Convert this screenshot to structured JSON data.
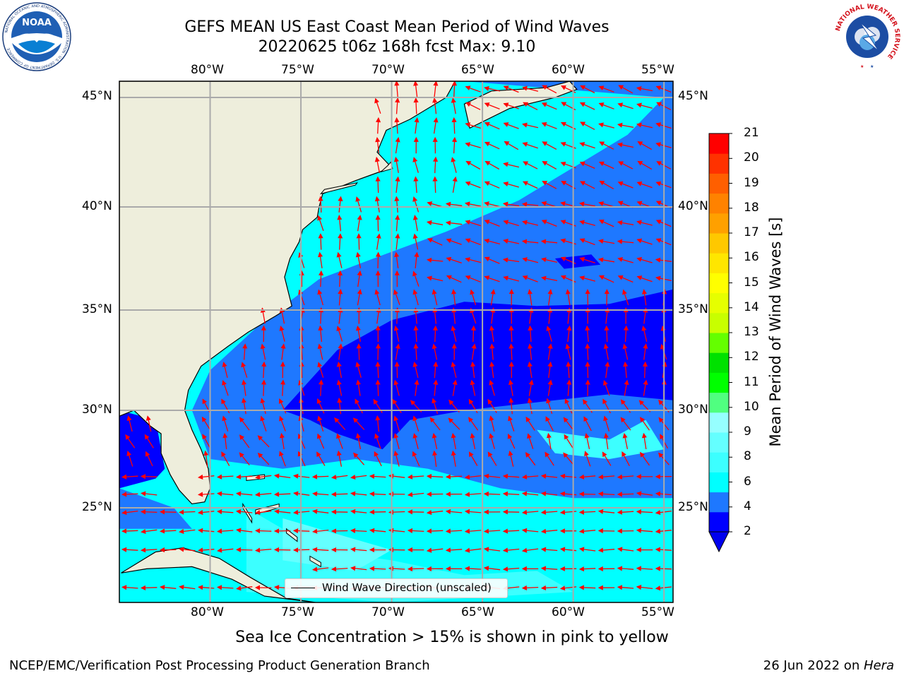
{
  "title": {
    "line1": "GEFS MEAN US East Coast Mean Period of Wind Waves",
    "line2": "20220625 t06z 168h fcst   Max: 9.10"
  },
  "map": {
    "lon_labels": [
      "80°W",
      "75°W",
      "70°W",
      "65°W",
      "60°W",
      "55°W"
    ],
    "lat_labels": [
      "45°N",
      "40°N",
      "35°N",
      "30°N",
      "25°N"
    ],
    "extent": {
      "lon_min": -85,
      "lon_max": -54.5,
      "lat_min": 20.5,
      "lat_max": 46
    },
    "gridlines": {
      "lon": [
        -80,
        -75,
        -70,
        -65,
        -60,
        -55
      ],
      "lat": [
        45,
        40,
        35,
        30,
        25
      ]
    },
    "land_color": "#eeeedc",
    "arrow_color": "#ff0000",
    "legend_label": "Wind Wave Direction (unscaled)"
  },
  "colorbar": {
    "title": "Mean Period of Wind Waves [s]",
    "ticks": [
      "21",
      "20",
      "19",
      "18",
      "17",
      "16",
      "15",
      "14",
      "13",
      "12",
      "11",
      "10",
      "9",
      "8",
      "6",
      "4",
      "2"
    ],
    "colors": [
      "#0000ff",
      "#1e78ff",
      "#00ffff",
      "#3cffff",
      "#64ffff",
      "#96ffff",
      "#50ff80",
      "#00ff00",
      "#00e100",
      "#64ff00",
      "#c8ff00",
      "#e6ff00",
      "#ffff00",
      "#ffe600",
      "#ffc800",
      "#ffa000",
      "#ff8200",
      "#ff5f00",
      "#ff3200",
      "#ff0000"
    ],
    "extend_color": "#0000ee"
  },
  "subcaption": "Sea Ice Concentration > 15% is shown in pink to yellow",
  "footer": {
    "left": "NCEP/EMC/Verification Post Processing Product Generation Branch",
    "date": "26 Jun 2022 on ",
    "machine": "Hera"
  },
  "logos": {
    "noaa": "NOAA",
    "noaa_ring": "NATIONAL OCEANIC AND ATMOSPHERIC ADMINISTRATION · U.S. DEPARTMENT OF COMMERCE",
    "nws_ring": "NATIONAL WEATHER SERVICE"
  }
}
